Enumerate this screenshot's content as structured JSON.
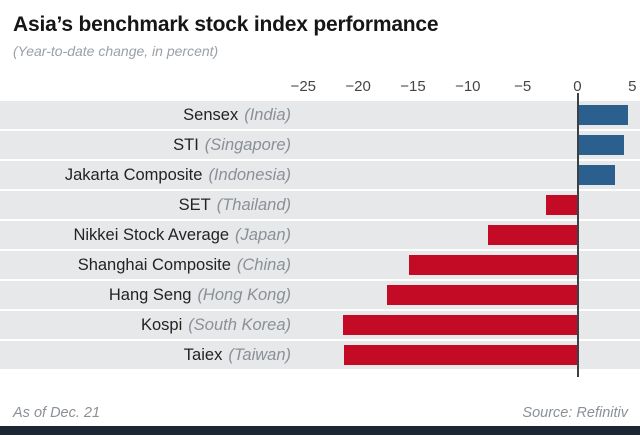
{
  "header": {
    "title": "Asia’s benchmark stock index performance",
    "subtitle": "(Year-to-date change, in percent)"
  },
  "footer": {
    "as_of": "As of Dec. 21",
    "source": "Source: Refinitiv"
  },
  "colors": {
    "positive_bar": "#2b5f8d",
    "negative_bar": "#c40b25",
    "row_stripe": "#e7e8ea",
    "zero_line": "#3c4148",
    "bottom_bar": "#1c2733"
  },
  "chart_data": {
    "type": "bar",
    "orientation": "horizontal",
    "title": "Asia’s benchmark stock index performance",
    "subtitle": "(Year-to-date change, in percent)",
    "unit": "percent",
    "xlim": [
      -25,
      5
    ],
    "xlim_render": [
      -25.3,
      5.7
    ],
    "grid": false,
    "legend": "none",
    "ticks": [
      {
        "value": -25,
        "label": "−25"
      },
      {
        "value": -20,
        "label": "−20"
      },
      {
        "value": -15,
        "label": "−15"
      },
      {
        "value": -10,
        "label": "−10"
      },
      {
        "value": -5,
        "label": "−5"
      },
      {
        "value": 0,
        "label": "0"
      },
      {
        "value": 5,
        "label": "5"
      }
    ],
    "rows": [
      {
        "label": "Sensex",
        "country": "(India)",
        "value": 4.6
      },
      {
        "label": "STI",
        "country": "(Singapore)",
        "value": 4.2
      },
      {
        "label": "Jakarta Composite",
        "country": "(Indonesia)",
        "value": 3.4
      },
      {
        "label": "SET",
        "country": "(Thailand)",
        "value": -2.9
      },
      {
        "label": "Nikkei Stock Average",
        "country": "(Japan)",
        "value": -8.2
      },
      {
        "label": "Shanghai Composite",
        "country": "(China)",
        "value": -15.4
      },
      {
        "label": "Hang Seng",
        "country": "(Hong Kong)",
        "value": -17.4
      },
      {
        "label": "Kospi",
        "country": "(South Korea)",
        "value": -21.4
      },
      {
        "label": "Taiex",
        "country": "(Taiwan)",
        "value": -21.3
      }
    ]
  }
}
